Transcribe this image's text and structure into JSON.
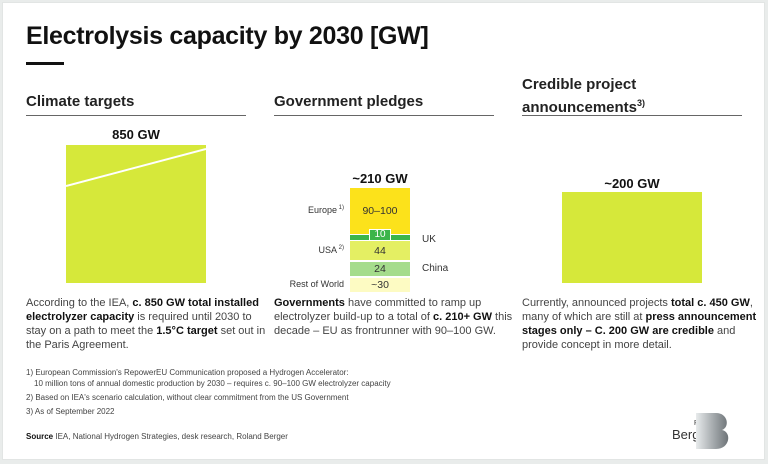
{
  "title": "Electrolysis capacity by 2030 [GW]",
  "sections": [
    {
      "title": "Climate targets",
      "title_sup": ""
    },
    {
      "title": "Government pledges",
      "title_sup": ""
    },
    {
      "title_line1": "Credible project",
      "title_line2": "announcements",
      "title_sup": "3)"
    }
  ],
  "chart_data": [
    {
      "type": "bar",
      "title": "Climate targets",
      "categories": [
        "Climate targets"
      ],
      "values": [
        850
      ],
      "data_labels": [
        "850 GW"
      ]
    },
    {
      "type": "bar",
      "title": "Government pledges",
      "stacked": true,
      "total_label": "~210 GW",
      "series": [
        {
          "name": "Europe",
          "footnote": "1)",
          "label": "90–100",
          "value": 95,
          "color": "#fce21b",
          "side": "left"
        },
        {
          "name": "UK",
          "footnote": "",
          "label": "10",
          "value": 10,
          "color": "#3cb54a",
          "side": "right"
        },
        {
          "name": "USA",
          "footnote": "2)",
          "label": "44",
          "value": 44,
          "color": "#e4ef63",
          "side": "left"
        },
        {
          "name": "China",
          "footnote": "",
          "label": "24",
          "value": 24,
          "color": "#a5dc8c",
          "side": "right"
        },
        {
          "name": "Rest of World",
          "footnote": "",
          "label": "~30",
          "value": 30,
          "color": "#fdfbc3",
          "side": "left"
        }
      ]
    },
    {
      "type": "bar",
      "title": "Credible project announcements",
      "categories": [
        "Credible project announcements"
      ],
      "values": [
        200
      ],
      "data_labels": [
        "~200 GW"
      ]
    }
  ],
  "texts": {
    "climate": [
      {
        "t": "According to the IEA, ",
        "b": false
      },
      {
        "t": "c. 850 GW total installed electrolyzer capacity",
        "b": true
      },
      {
        "t": " is required until 2030 to stay on a path to meet the ",
        "b": false
      },
      {
        "t": "1.5°C target",
        "b": true
      },
      {
        "t": " set out in the Paris Agreement.",
        "b": false
      }
    ],
    "government": [
      {
        "t": "Governments",
        "b": true
      },
      {
        "t": " have committed to ramp up electrolyzer build-up to a total of ",
        "b": false
      },
      {
        "t": "c. 210+ GW",
        "b": true
      },
      {
        "t": " this decade – EU as frontrunner with 90–100 GW.",
        "b": false
      }
    ],
    "credible": [
      {
        "t": "Currently, announced projects ",
        "b": false
      },
      {
        "t": "total c. 450 GW",
        "b": true
      },
      {
        "t": ", many of which are still at ",
        "b": false
      },
      {
        "t": "press announcement stages only – C. 200 GW are credible",
        "b": true
      },
      {
        "t": " and provide concept in more detail.",
        "b": false
      }
    ]
  },
  "footnotes": [
    "1)  European Commission's RepowerEU Communication proposed a Hydrogen Accelerator:",
    "      10 million tons of annual domestic production by 2030 – requires c. 90–100 GW electrolyzer capacity",
    "2)  Based on IEA's scenario calculation, without clear commitment from the US Government",
    "3)  As of September 2022"
  ],
  "source": {
    "label": "Source",
    "text": " IEA, National Hydrogen Strategies, desk research, Roland Berger"
  },
  "logo": {
    "line1": "Roland",
    "line2": "Berger"
  },
  "colors": {
    "accent": "#d6e83a",
    "europe": "#fce21b",
    "uk": "#3cb54a",
    "usa": "#e4ef63",
    "china": "#a5dc8c",
    "row": "#fdfbc3"
  }
}
